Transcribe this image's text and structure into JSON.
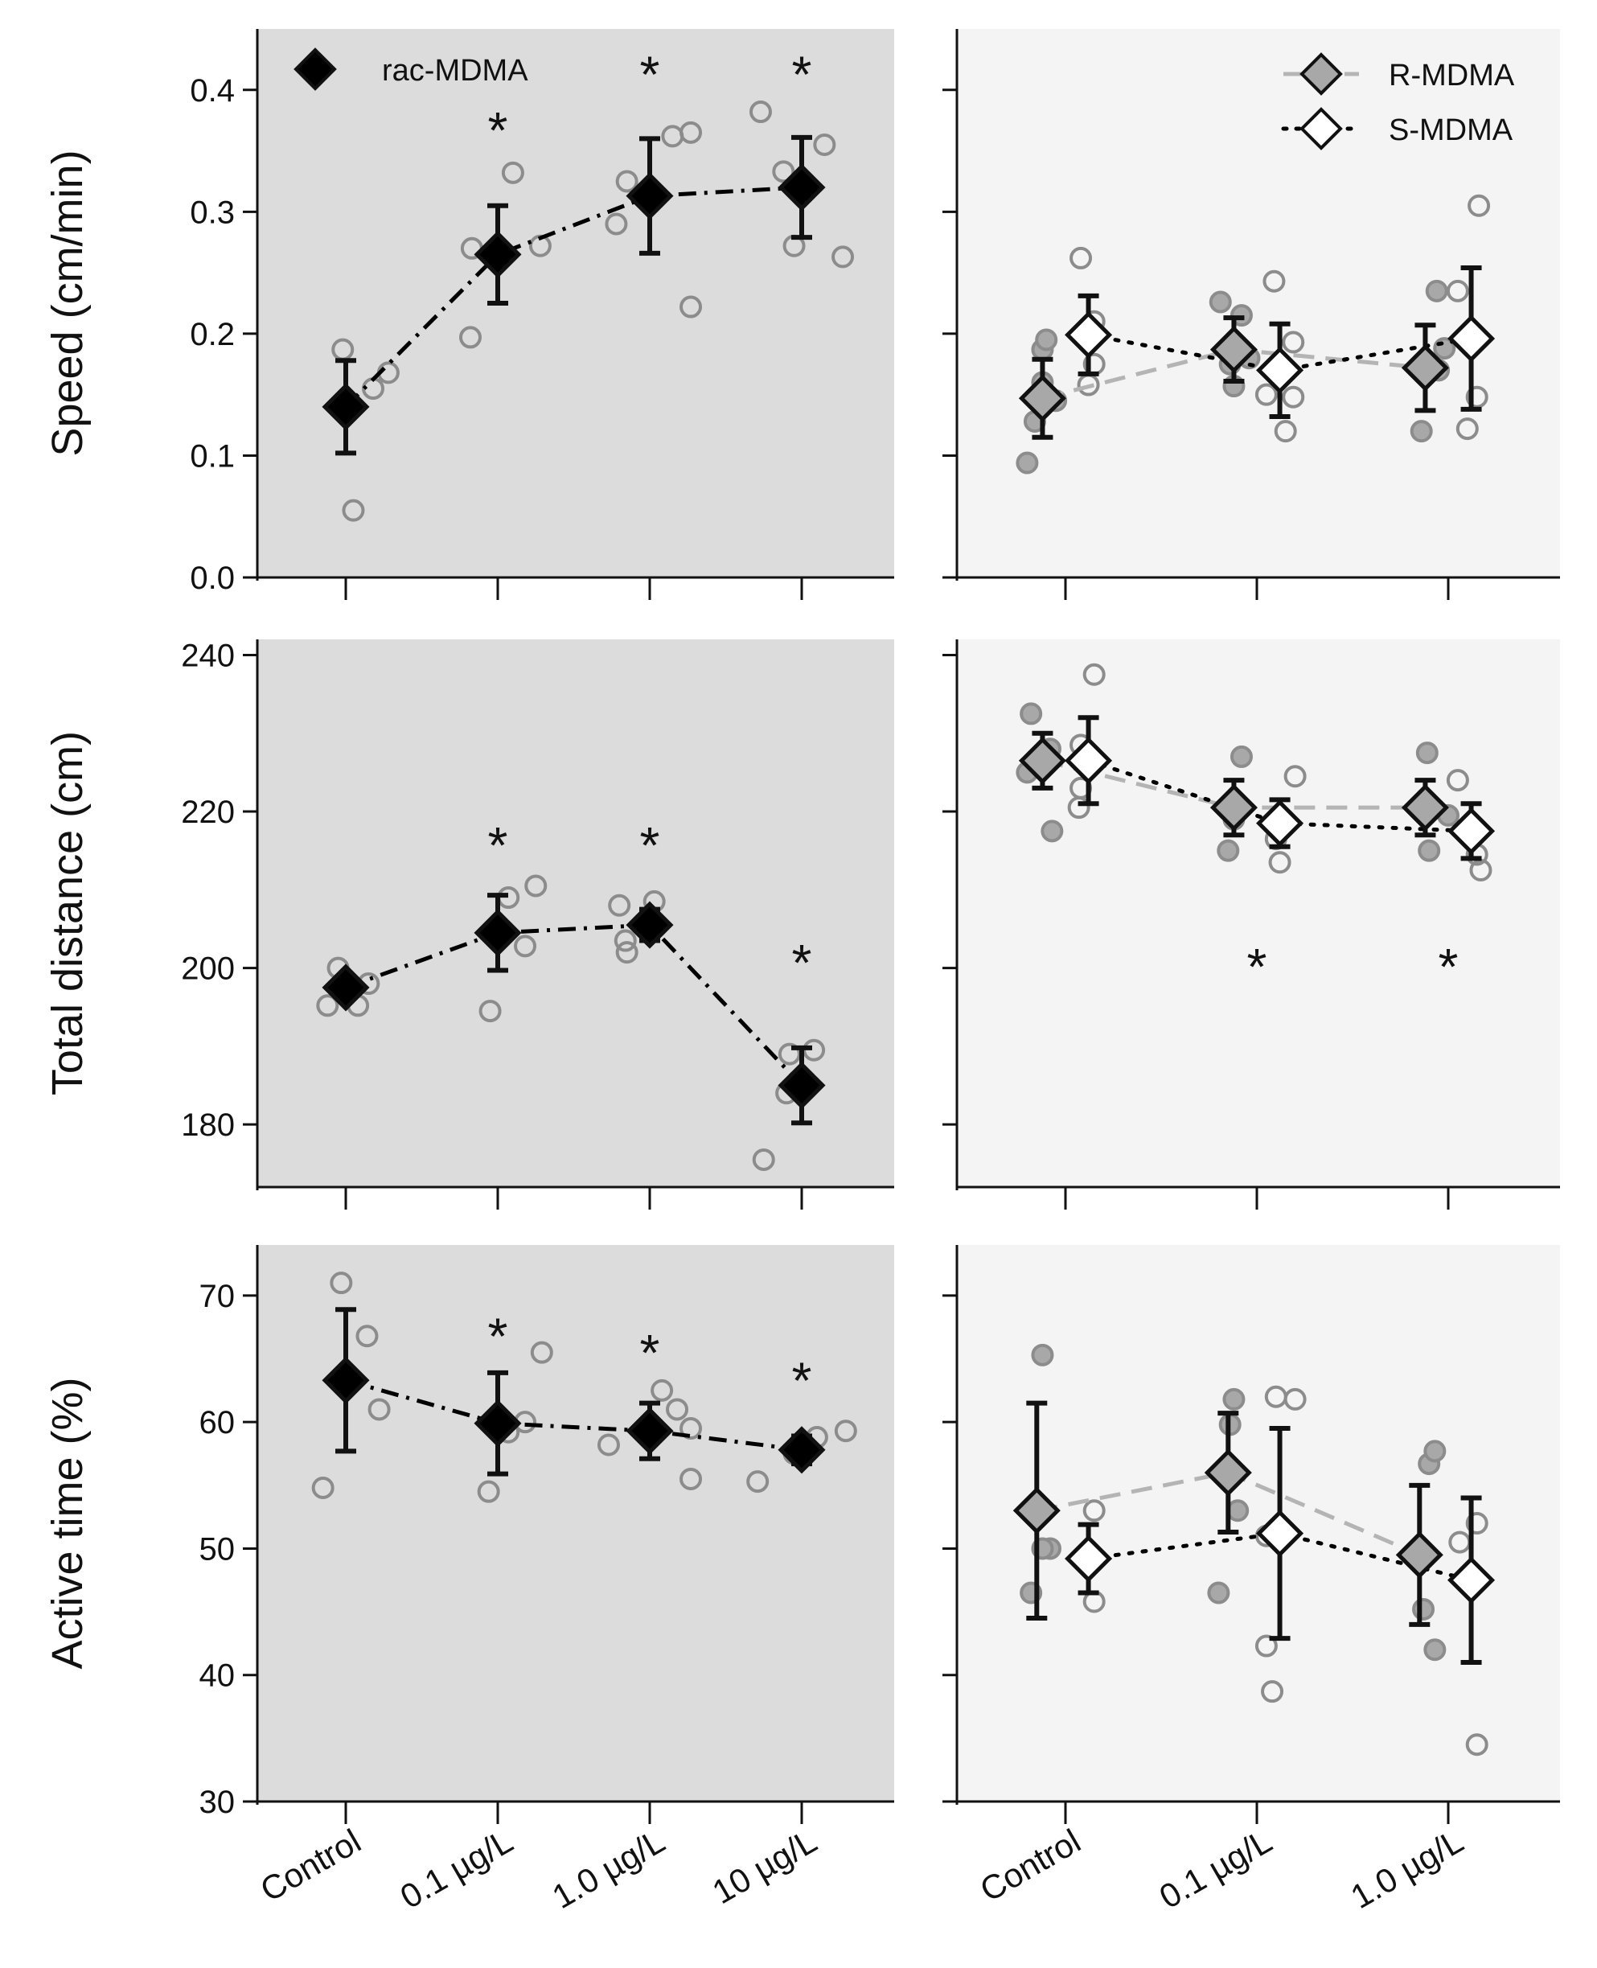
{
  "colors": {
    "panel_left_bg": "#dcdcdc",
    "panel_right_bg": "#f4f4f4",
    "rac": "#000000",
    "r_fill": "#a8a8a8",
    "s_fill": "#ffffff",
    "r_line": "#b4b4b4",
    "s_line": "#000000",
    "individual_point": "#8c8c8c"
  },
  "chart_data": [
    {
      "type": "scatter",
      "panel": "speed-left",
      "ylabel": "Speed (cm/min)",
      "ylim": [
        0.0,
        0.45
      ],
      "yticks": [
        0.0,
        0.1,
        0.2,
        0.3,
        0.4
      ],
      "tick_labels": [
        "0.0",
        "0.1",
        "0.2",
        "0.3",
        "0.4"
      ],
      "categories": [
        "Control",
        "0.1 µg/L",
        "1.0 µg/L",
        "10 µg/L"
      ],
      "legend": [
        {
          "name": "rac-MDMA",
          "marker": "diamond-black",
          "line": "none"
        }
      ],
      "series": [
        {
          "name": "rac-MDMA",
          "style": "rac",
          "offset": 0,
          "means": [
            0.14,
            0.265,
            0.313,
            0.32
          ],
          "errors": [
            0.038,
            0.04,
            0.047,
            0.041
          ],
          "line": "dashdot"
        }
      ],
      "points": [
        {
          "cat": 0,
          "dx": -0.02,
          "y": 0.187
        },
        {
          "cat": 0,
          "dx": 0.05,
          "y": 0.055
        },
        {
          "cat": 0,
          "dx": 0.18,
          "y": 0.155
        },
        {
          "cat": 0,
          "dx": 0.28,
          "y": 0.168
        },
        {
          "cat": 1,
          "dx": -0.18,
          "y": 0.197
        },
        {
          "cat": 1,
          "dx": -0.17,
          "y": 0.27
        },
        {
          "cat": 1,
          "dx": 0.1,
          "y": 0.332
        },
        {
          "cat": 1,
          "dx": 0.28,
          "y": 0.272
        },
        {
          "cat": 2,
          "dx": -0.22,
          "y": 0.29
        },
        {
          "cat": 2,
          "dx": -0.15,
          "y": 0.325
        },
        {
          "cat": 2,
          "dx": 0.15,
          "y": 0.362
        },
        {
          "cat": 2,
          "dx": 0.27,
          "y": 0.365
        },
        {
          "cat": 2,
          "dx": 0.27,
          "y": 0.222
        },
        {
          "cat": 3,
          "dx": -0.27,
          "y": 0.382
        },
        {
          "cat": 3,
          "dx": -0.12,
          "y": 0.333
        },
        {
          "cat": 3,
          "dx": -0.05,
          "y": 0.272
        },
        {
          "cat": 3,
          "dx": 0.15,
          "y": 0.355
        },
        {
          "cat": 3,
          "dx": 0.27,
          "y": 0.263
        }
      ],
      "stars": [
        {
          "cat": 1,
          "y": 0.372,
          "label": "*"
        },
        {
          "cat": 2,
          "y": 0.418,
          "label": "*"
        },
        {
          "cat": 3,
          "y": 0.418,
          "label": "*"
        }
      ]
    },
    {
      "type": "scatter",
      "panel": "speed-right",
      "ylabel": "",
      "ylim": [
        0.0,
        0.45
      ],
      "yticks": [
        0.0,
        0.1,
        0.2,
        0.3,
        0.4
      ],
      "tick_labels": [],
      "categories": [
        "Control",
        "0.1 µg/L",
        "1.0 µg/L"
      ],
      "legend": [
        {
          "name": "R-MDMA",
          "marker": "diamond-grey",
          "line": "dashed-grey"
        },
        {
          "name": "S-MDMA",
          "marker": "diamond-white",
          "line": "dotted-black"
        }
      ],
      "series": [
        {
          "name": "R-MDMA",
          "style": "r",
          "offset": -0.12,
          "means": [
            0.147,
            0.187,
            0.172
          ],
          "errors": [
            0.032,
            0.026,
            0.035
          ],
          "line": "dashed"
        },
        {
          "name": "S-MDMA",
          "style": "s",
          "offset": 0.12,
          "means": [
            0.199,
            0.17,
            0.196
          ],
          "errors": [
            0.032,
            0.038,
            0.058
          ],
          "line": "dotted"
        }
      ],
      "points": [
        {
          "cat": 0,
          "dx": -0.2,
          "y": 0.094,
          "fill": "r"
        },
        {
          "cat": 0,
          "dx": -0.16,
          "y": 0.128,
          "fill": "r"
        },
        {
          "cat": 0,
          "dx": -0.12,
          "y": 0.16,
          "fill": "r"
        },
        {
          "cat": 0,
          "dx": -0.12,
          "y": 0.187,
          "fill": "r"
        },
        {
          "cat": 0,
          "dx": -0.1,
          "y": 0.195,
          "fill": "r"
        },
        {
          "cat": 0,
          "dx": -0.05,
          "y": 0.145,
          "fill": "r"
        },
        {
          "cat": 0,
          "dx": 0.08,
          "y": 0.262
        },
        {
          "cat": 0,
          "dx": 0.12,
          "y": 0.158
        },
        {
          "cat": 0,
          "dx": 0.15,
          "y": 0.175
        },
        {
          "cat": 0,
          "dx": 0.15,
          "y": 0.21
        },
        {
          "cat": 1,
          "dx": -0.19,
          "y": 0.226,
          "fill": "r"
        },
        {
          "cat": 1,
          "dx": -0.14,
          "y": 0.175,
          "fill": "r"
        },
        {
          "cat": 1,
          "dx": -0.12,
          "y": 0.157,
          "fill": "r"
        },
        {
          "cat": 1,
          "dx": -0.08,
          "y": 0.215,
          "fill": "r"
        },
        {
          "cat": 1,
          "dx": -0.04,
          "y": 0.18,
          "fill": "r"
        },
        {
          "cat": 1,
          "dx": 0.05,
          "y": 0.15
        },
        {
          "cat": 1,
          "dx": 0.09,
          "y": 0.243
        },
        {
          "cat": 1,
          "dx": 0.12,
          "y": 0.166
        },
        {
          "cat": 1,
          "dx": 0.15,
          "y": 0.12
        },
        {
          "cat": 1,
          "dx": 0.19,
          "y": 0.148
        },
        {
          "cat": 1,
          "dx": 0.19,
          "y": 0.193
        },
        {
          "cat": 2,
          "dx": -0.14,
          "y": 0.12,
          "fill": "r"
        },
        {
          "cat": 2,
          "dx": -0.1,
          "y": 0.175,
          "fill": "r"
        },
        {
          "cat": 2,
          "dx": -0.06,
          "y": 0.235,
          "fill": "r"
        },
        {
          "cat": 2,
          "dx": -0.05,
          "y": 0.17,
          "fill": "r"
        },
        {
          "cat": 2,
          "dx": -0.02,
          "y": 0.188,
          "fill": "r"
        },
        {
          "cat": 2,
          "dx": 0.05,
          "y": 0.235
        },
        {
          "cat": 2,
          "dx": 0.1,
          "y": 0.122
        },
        {
          "cat": 2,
          "dx": 0.15,
          "y": 0.148
        },
        {
          "cat": 2,
          "dx": 0.16,
          "y": 0.305
        }
      ],
      "stars": []
    },
    {
      "type": "scatter",
      "panel": "distance-left",
      "ylabel": "Total distance (cm)",
      "ylim": [
        172,
        242
      ],
      "yticks": [
        180,
        200,
        220,
        240
      ],
      "tick_labels": [
        "180",
        "200",
        "220",
        "240"
      ],
      "categories": [
        "Control",
        "0.1 µg/L",
        "1.0 µg/L",
        "10 µg/L"
      ],
      "legend": [],
      "series": [
        {
          "name": "rac-MDMA",
          "style": "rac",
          "offset": 0,
          "means": [
            197.5,
            204.5,
            205.5,
            185.0
          ],
          "errors": [
            1.4,
            4.8,
            2.0,
            4.8
          ],
          "line": "dashdot"
        }
      ],
      "points": [
        {
          "cat": 0,
          "dx": -0.12,
          "y": 195.2
        },
        {
          "cat": 0,
          "dx": -0.05,
          "y": 200.0
        },
        {
          "cat": 0,
          "dx": 0.08,
          "y": 195.2
        },
        {
          "cat": 0,
          "dx": 0.15,
          "y": 198.0
        },
        {
          "cat": 1,
          "dx": -0.05,
          "y": 194.5
        },
        {
          "cat": 1,
          "dx": 0.07,
          "y": 209.0
        },
        {
          "cat": 1,
          "dx": 0.18,
          "y": 202.8
        },
        {
          "cat": 1,
          "dx": 0.25,
          "y": 210.5
        },
        {
          "cat": 2,
          "dx": -0.2,
          "y": 208.0
        },
        {
          "cat": 2,
          "dx": -0.16,
          "y": 203.5
        },
        {
          "cat": 2,
          "dx": -0.15,
          "y": 202.0
        },
        {
          "cat": 2,
          "dx": 0.03,
          "y": 208.5
        },
        {
          "cat": 3,
          "dx": -0.25,
          "y": 175.5
        },
        {
          "cat": 3,
          "dx": -0.1,
          "y": 184.0
        },
        {
          "cat": 3,
          "dx": -0.08,
          "y": 189.0
        },
        {
          "cat": 3,
          "dx": 0.08,
          "y": 189.5
        }
      ],
      "stars": [
        {
          "cat": 1,
          "y": 216.5,
          "label": "*"
        },
        {
          "cat": 2,
          "y": 216.5,
          "label": "*"
        },
        {
          "cat": 3,
          "y": 201.5,
          "label": "*"
        }
      ]
    },
    {
      "type": "scatter",
      "panel": "distance-right",
      "ylabel": "",
      "ylim": [
        172,
        242
      ],
      "yticks": [
        180,
        200,
        220,
        240
      ],
      "tick_labels": [],
      "categories": [
        "Control",
        "0.1 µg/L",
        "1.0 µg/L"
      ],
      "legend": [],
      "series": [
        {
          "name": "R-MDMA",
          "style": "r",
          "offset": -0.12,
          "means": [
            226.5,
            220.5,
            220.5
          ],
          "errors": [
            3.5,
            3.5,
            3.5
          ],
          "line": "dashed"
        },
        {
          "name": "S-MDMA",
          "style": "s",
          "offset": 0.12,
          "means": [
            226.5,
            218.5,
            217.5
          ],
          "errors": [
            5.5,
            3.0,
            3.5
          ],
          "line": "dotted"
        }
      ],
      "points": [
        {
          "cat": 0,
          "dx": -0.2,
          "y": 225.0,
          "fill": "r"
        },
        {
          "cat": 0,
          "dx": -0.18,
          "y": 232.5,
          "fill": "r"
        },
        {
          "cat": 0,
          "dx": -0.08,
          "y": 228.0,
          "fill": "r"
        },
        {
          "cat": 0,
          "dx": -0.07,
          "y": 217.5,
          "fill": "r"
        },
        {
          "cat": 0,
          "dx": 0.07,
          "y": 220.5
        },
        {
          "cat": 0,
          "dx": 0.08,
          "y": 223.0
        },
        {
          "cat": 0,
          "dx": 0.15,
          "y": 237.5
        },
        {
          "cat": 0,
          "dx": 0.08,
          "y": 228.5
        },
        {
          "cat": 1,
          "dx": -0.15,
          "y": 215.0,
          "fill": "r"
        },
        {
          "cat": 1,
          "dx": -0.12,
          "y": 219.0,
          "fill": "r"
        },
        {
          "cat": 1,
          "dx": -0.08,
          "y": 227.0,
          "fill": "r"
        },
        {
          "cat": 1,
          "dx": 0.1,
          "y": 216.5
        },
        {
          "cat": 1,
          "dx": 0.12,
          "y": 213.5
        },
        {
          "cat": 1,
          "dx": 0.2,
          "y": 224.5
        },
        {
          "cat": 2,
          "dx": -0.11,
          "y": 227.5,
          "fill": "r"
        },
        {
          "cat": 2,
          "dx": -0.1,
          "y": 215.0,
          "fill": "r"
        },
        {
          "cat": 2,
          "dx": 0.0,
          "y": 219.5,
          "fill": "r"
        },
        {
          "cat": 2,
          "dx": 0.05,
          "y": 224.0
        },
        {
          "cat": 2,
          "dx": 0.15,
          "y": 214.5
        },
        {
          "cat": 2,
          "dx": 0.17,
          "y": 212.5
        }
      ],
      "stars": [
        {
          "cat": 1,
          "y": 201.0,
          "label": "*"
        },
        {
          "cat": 2,
          "y": 201.0,
          "label": "*"
        }
      ]
    },
    {
      "type": "scatter",
      "panel": "active-left",
      "ylabel": "Active time (%)",
      "ylim": [
        30,
        74
      ],
      "yticks": [
        30,
        40,
        50,
        60,
        70
      ],
      "tick_labels": [
        "30",
        "40",
        "50",
        "60",
        "70"
      ],
      "categories": [
        "Control",
        "0.1 µg/L",
        "1.0 µg/L",
        "10 µg/L"
      ],
      "legend": [],
      "series": [
        {
          "name": "rac-MDMA",
          "style": "rac",
          "offset": 0,
          "means": [
            63.3,
            59.9,
            59.3,
            57.8
          ],
          "errors": [
            5.6,
            4.0,
            2.2,
            1.1
          ],
          "line": "dashdot"
        }
      ],
      "points": [
        {
          "cat": 0,
          "dx": -0.15,
          "y": 54.8
        },
        {
          "cat": 0,
          "dx": -0.03,
          "y": 71.0
        },
        {
          "cat": 0,
          "dx": 0.14,
          "y": 66.8
        },
        {
          "cat": 0,
          "dx": 0.22,
          "y": 61.0
        },
        {
          "cat": 1,
          "dx": -0.06,
          "y": 54.5
        },
        {
          "cat": 1,
          "dx": 0.07,
          "y": 59.2
        },
        {
          "cat": 1,
          "dx": 0.18,
          "y": 60.0
        },
        {
          "cat": 1,
          "dx": 0.29,
          "y": 65.5
        },
        {
          "cat": 2,
          "dx": -0.27,
          "y": 58.2
        },
        {
          "cat": 2,
          "dx": 0.08,
          "y": 62.5
        },
        {
          "cat": 2,
          "dx": 0.18,
          "y": 61.0
        },
        {
          "cat": 2,
          "dx": 0.27,
          "y": 59.5
        },
        {
          "cat": 2,
          "dx": 0.27,
          "y": 55.5
        },
        {
          "cat": 3,
          "dx": -0.29,
          "y": 55.3
        },
        {
          "cat": 3,
          "dx": -0.05,
          "y": 57.5
        },
        {
          "cat": 3,
          "dx": 0.1,
          "y": 58.8
        },
        {
          "cat": 3,
          "dx": 0.29,
          "y": 59.3
        }
      ],
      "stars": [
        {
          "cat": 1,
          "y": 67.3,
          "label": "*"
        },
        {
          "cat": 2,
          "y": 66.0,
          "label": "*"
        },
        {
          "cat": 3,
          "y": 63.8,
          "label": "*"
        }
      ]
    },
    {
      "type": "scatter",
      "panel": "active-right",
      "ylabel": "",
      "ylim": [
        30,
        74
      ],
      "yticks": [
        30,
        40,
        50,
        60,
        70
      ],
      "tick_labels": [],
      "categories": [
        "Control",
        "0.1 µg/L",
        "1.0 µg/L"
      ],
      "legend": [],
      "series": [
        {
          "name": "R-MDMA",
          "style": "r",
          "offset": -0.15,
          "means": [
            53.0,
            56.0,
            49.5
          ],
          "errors": [
            8.5,
            4.7,
            5.5
          ],
          "line": "dashed"
        },
        {
          "name": "S-MDMA",
          "style": "s",
          "offset": 0.12,
          "means": [
            49.2,
            51.2,
            47.5
          ],
          "errors": [
            2.7,
            8.3,
            6.5
          ],
          "line": "dotted"
        }
      ],
      "points": [
        {
          "cat": 0,
          "dx": -0.18,
          "y": 46.5,
          "fill": "r"
        },
        {
          "cat": 0,
          "dx": -0.12,
          "y": 65.3,
          "fill": "r"
        },
        {
          "cat": 0,
          "dx": -0.08,
          "y": 50.0,
          "fill": "r"
        },
        {
          "cat": 0,
          "dx": -0.12,
          "y": 50.0,
          "fill": "r"
        },
        {
          "cat": 0,
          "dx": 0.15,
          "y": 53.0
        },
        {
          "cat": 0,
          "dx": 0.15,
          "y": 45.8
        },
        {
          "cat": 1,
          "dx": -0.2,
          "y": 46.5,
          "fill": "r"
        },
        {
          "cat": 1,
          "dx": -0.14,
          "y": 59.8,
          "fill": "r"
        },
        {
          "cat": 1,
          "dx": -0.12,
          "y": 61.8,
          "fill": "r"
        },
        {
          "cat": 1,
          "dx": -0.1,
          "y": 53.0,
          "fill": "r"
        },
        {
          "cat": 1,
          "dx": 0.05,
          "y": 42.3
        },
        {
          "cat": 1,
          "dx": 0.05,
          "y": 51.0
        },
        {
          "cat": 1,
          "dx": 0.1,
          "y": 62.0
        },
        {
          "cat": 1,
          "dx": 0.2,
          "y": 61.8
        },
        {
          "cat": 1,
          "dx": 0.08,
          "y": 38.7
        },
        {
          "cat": 2,
          "dx": -0.13,
          "y": 45.2,
          "fill": "r"
        },
        {
          "cat": 2,
          "dx": -0.1,
          "y": 56.7,
          "fill": "r"
        },
        {
          "cat": 2,
          "dx": -0.07,
          "y": 57.7,
          "fill": "r"
        },
        {
          "cat": 2,
          "dx": -0.07,
          "y": 42.0,
          "fill": "r"
        },
        {
          "cat": 2,
          "dx": 0.06,
          "y": 50.5
        },
        {
          "cat": 2,
          "dx": 0.15,
          "y": 52.0
        },
        {
          "cat": 2,
          "dx": 0.15,
          "y": 34.5
        }
      ],
      "stars": []
    }
  ]
}
